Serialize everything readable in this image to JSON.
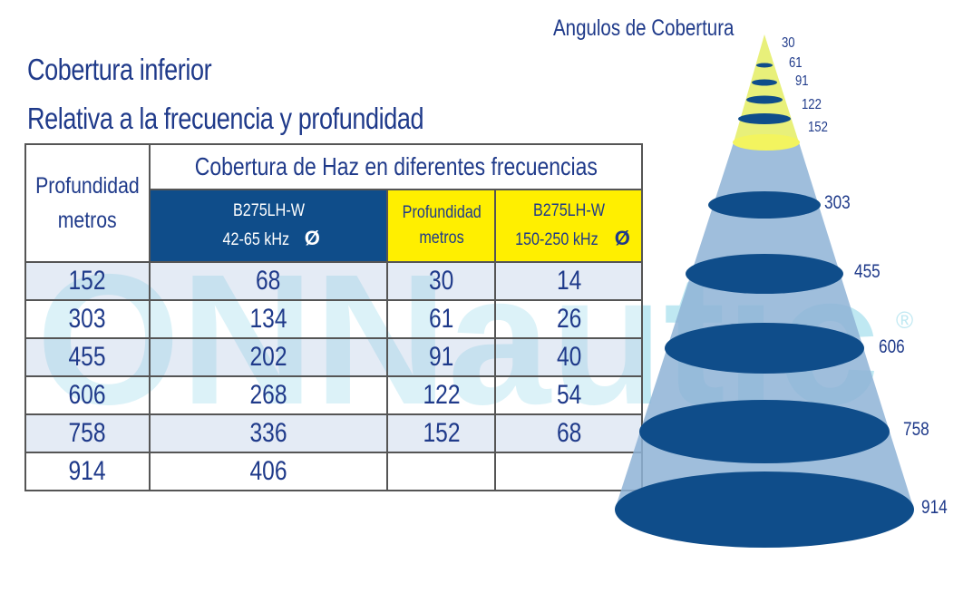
{
  "title_line1": "Cobertura inferior",
  "title_line2": "Relativa a la frecuencia y profundidad",
  "watermark": {
    "text": "ONNautic",
    "mark": "®",
    "color": "#bfe8f2"
  },
  "table": {
    "header_depth": [
      "Profundidad",
      "metros"
    ],
    "header_span": "Cobertura de Haz en diferentes frecuencias",
    "col_low": {
      "model": "B275LH-W",
      "freq": "42-65 kHz",
      "symbol": "Ø"
    },
    "col_depth2": [
      "Profundidad",
      "metros"
    ],
    "col_high": {
      "model": "B275LH-W",
      "freq": "150-250 kHz",
      "symbol": "Ø"
    },
    "rows": [
      [
        "152",
        "68",
        "30",
        "14"
      ],
      [
        "303",
        "134",
        "61",
        "26"
      ],
      [
        "455",
        "202",
        "91",
        "40"
      ],
      [
        "606",
        "268",
        "122",
        "54"
      ],
      [
        "758",
        "336",
        "152",
        "68"
      ],
      [
        "914",
        "406",
        "",
        ""
      ]
    ]
  },
  "cone": {
    "title": "Angulos de Cobertura",
    "yellow_labels": [
      "30",
      "61",
      "91",
      "122",
      "152"
    ],
    "blue_labels": [
      "303",
      "455",
      "606",
      "758",
      "914"
    ]
  },
  "colors": {
    "navy_text": "#1f3a8a",
    "header_blue": "#0f4d8a",
    "yellow": "#ffef00",
    "cone_blue": "#8eb3d6",
    "ellipse_blue": "#0f4d8a"
  }
}
